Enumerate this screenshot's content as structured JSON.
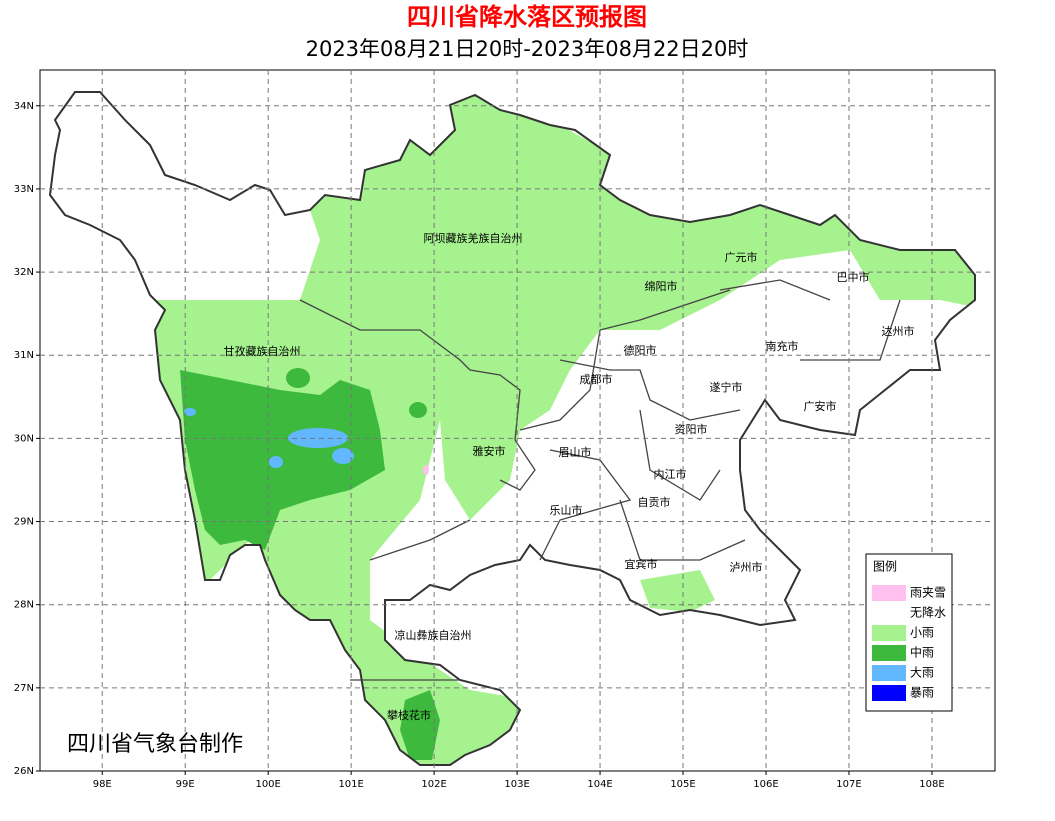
{
  "title": "四川省降水落区预报图",
  "subtitle": "2023年08月21日20时-2023年08月22日20时",
  "map": {
    "lon_range": [
      97.25,
      108.76
    ],
    "lat_range": [
      26,
      34.43
    ],
    "lon_ticks": [
      {
        "value": 98,
        "label": "98E"
      },
      {
        "value": 99,
        "label": "99E"
      },
      {
        "value": 100,
        "label": "100E"
      },
      {
        "value": 101,
        "label": "101E"
      },
      {
        "value": 102,
        "label": "102E"
      },
      {
        "value": 103,
        "label": "103E"
      },
      {
        "value": 104,
        "label": "104E"
      },
      {
        "value": 105,
        "label": "105E"
      },
      {
        "value": 106,
        "label": "106E"
      },
      {
        "value": 107,
        "label": "107E"
      },
      {
        "value": 108,
        "label": "108E"
      }
    ],
    "lat_ticks": [
      {
        "value": 26,
        "label": "26N"
      },
      {
        "value": 27,
        "label": "27N"
      },
      {
        "value": 28,
        "label": "28N"
      },
      {
        "value": 29,
        "label": "29N"
      },
      {
        "value": 30,
        "label": "30N"
      },
      {
        "value": 31,
        "label": "31N"
      },
      {
        "value": 32,
        "label": "32N"
      },
      {
        "value": 33,
        "label": "33N"
      },
      {
        "value": 34,
        "label": "34N"
      }
    ],
    "places": [
      "阿坝藏族羌族自治州",
      "甘孜藏族自治州",
      "绵阳市",
      "广元市",
      "巴中市",
      "达州市",
      "南充市",
      "德阳市",
      "成都市",
      "遂宁市",
      "广安市",
      "资阳市",
      "雅安市",
      "眉山市",
      "内江市",
      "自贡市",
      "乐山市",
      "宜宾市",
      "泸州市",
      "凉山彝族自治州",
      "攀枝花市"
    ]
  },
  "legend": {
    "title": "图例",
    "items": [
      {
        "label": "雨夹雪",
        "color": "#ffc0f0"
      },
      {
        "label": "无降水",
        "color": "#ffffff"
      },
      {
        "label": "小雨",
        "color": "#a6f28f"
      },
      {
        "label": "中雨",
        "color": "#3dba3d"
      },
      {
        "label": "大雨",
        "color": "#61b8ff"
      },
      {
        "label": "暴雨",
        "color": "#0000fe"
      }
    ]
  },
  "credit": "四川省气象台制作"
}
